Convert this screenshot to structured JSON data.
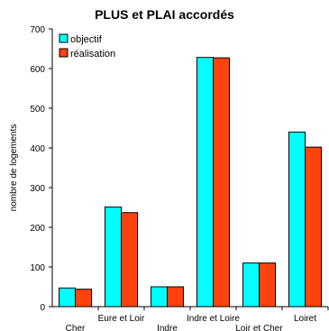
{
  "chart_data": {
    "type": "bar",
    "title": "PLUS et PLAI accordés",
    "xlabel": "",
    "ylabel": "nombre de logements",
    "ylim": [
      0,
      700
    ],
    "yticks": [
      0,
      100,
      200,
      300,
      400,
      500,
      600,
      700
    ],
    "categories": [
      "Cher",
      "Eure et Loir",
      "Indre",
      "Indre et Loire",
      "Loir et Cher",
      "Loiret"
    ],
    "series": [
      {
        "name": "objectif",
        "color": "#00ffff",
        "values": [
          47,
          251,
          50,
          628,
          110,
          440
        ]
      },
      {
        "name": "réalisation",
        "color": "#ff420e",
        "values": [
          44,
          237,
          50,
          627,
          110,
          402
        ]
      }
    ],
    "legend_position": "top-left",
    "grid": false
  }
}
